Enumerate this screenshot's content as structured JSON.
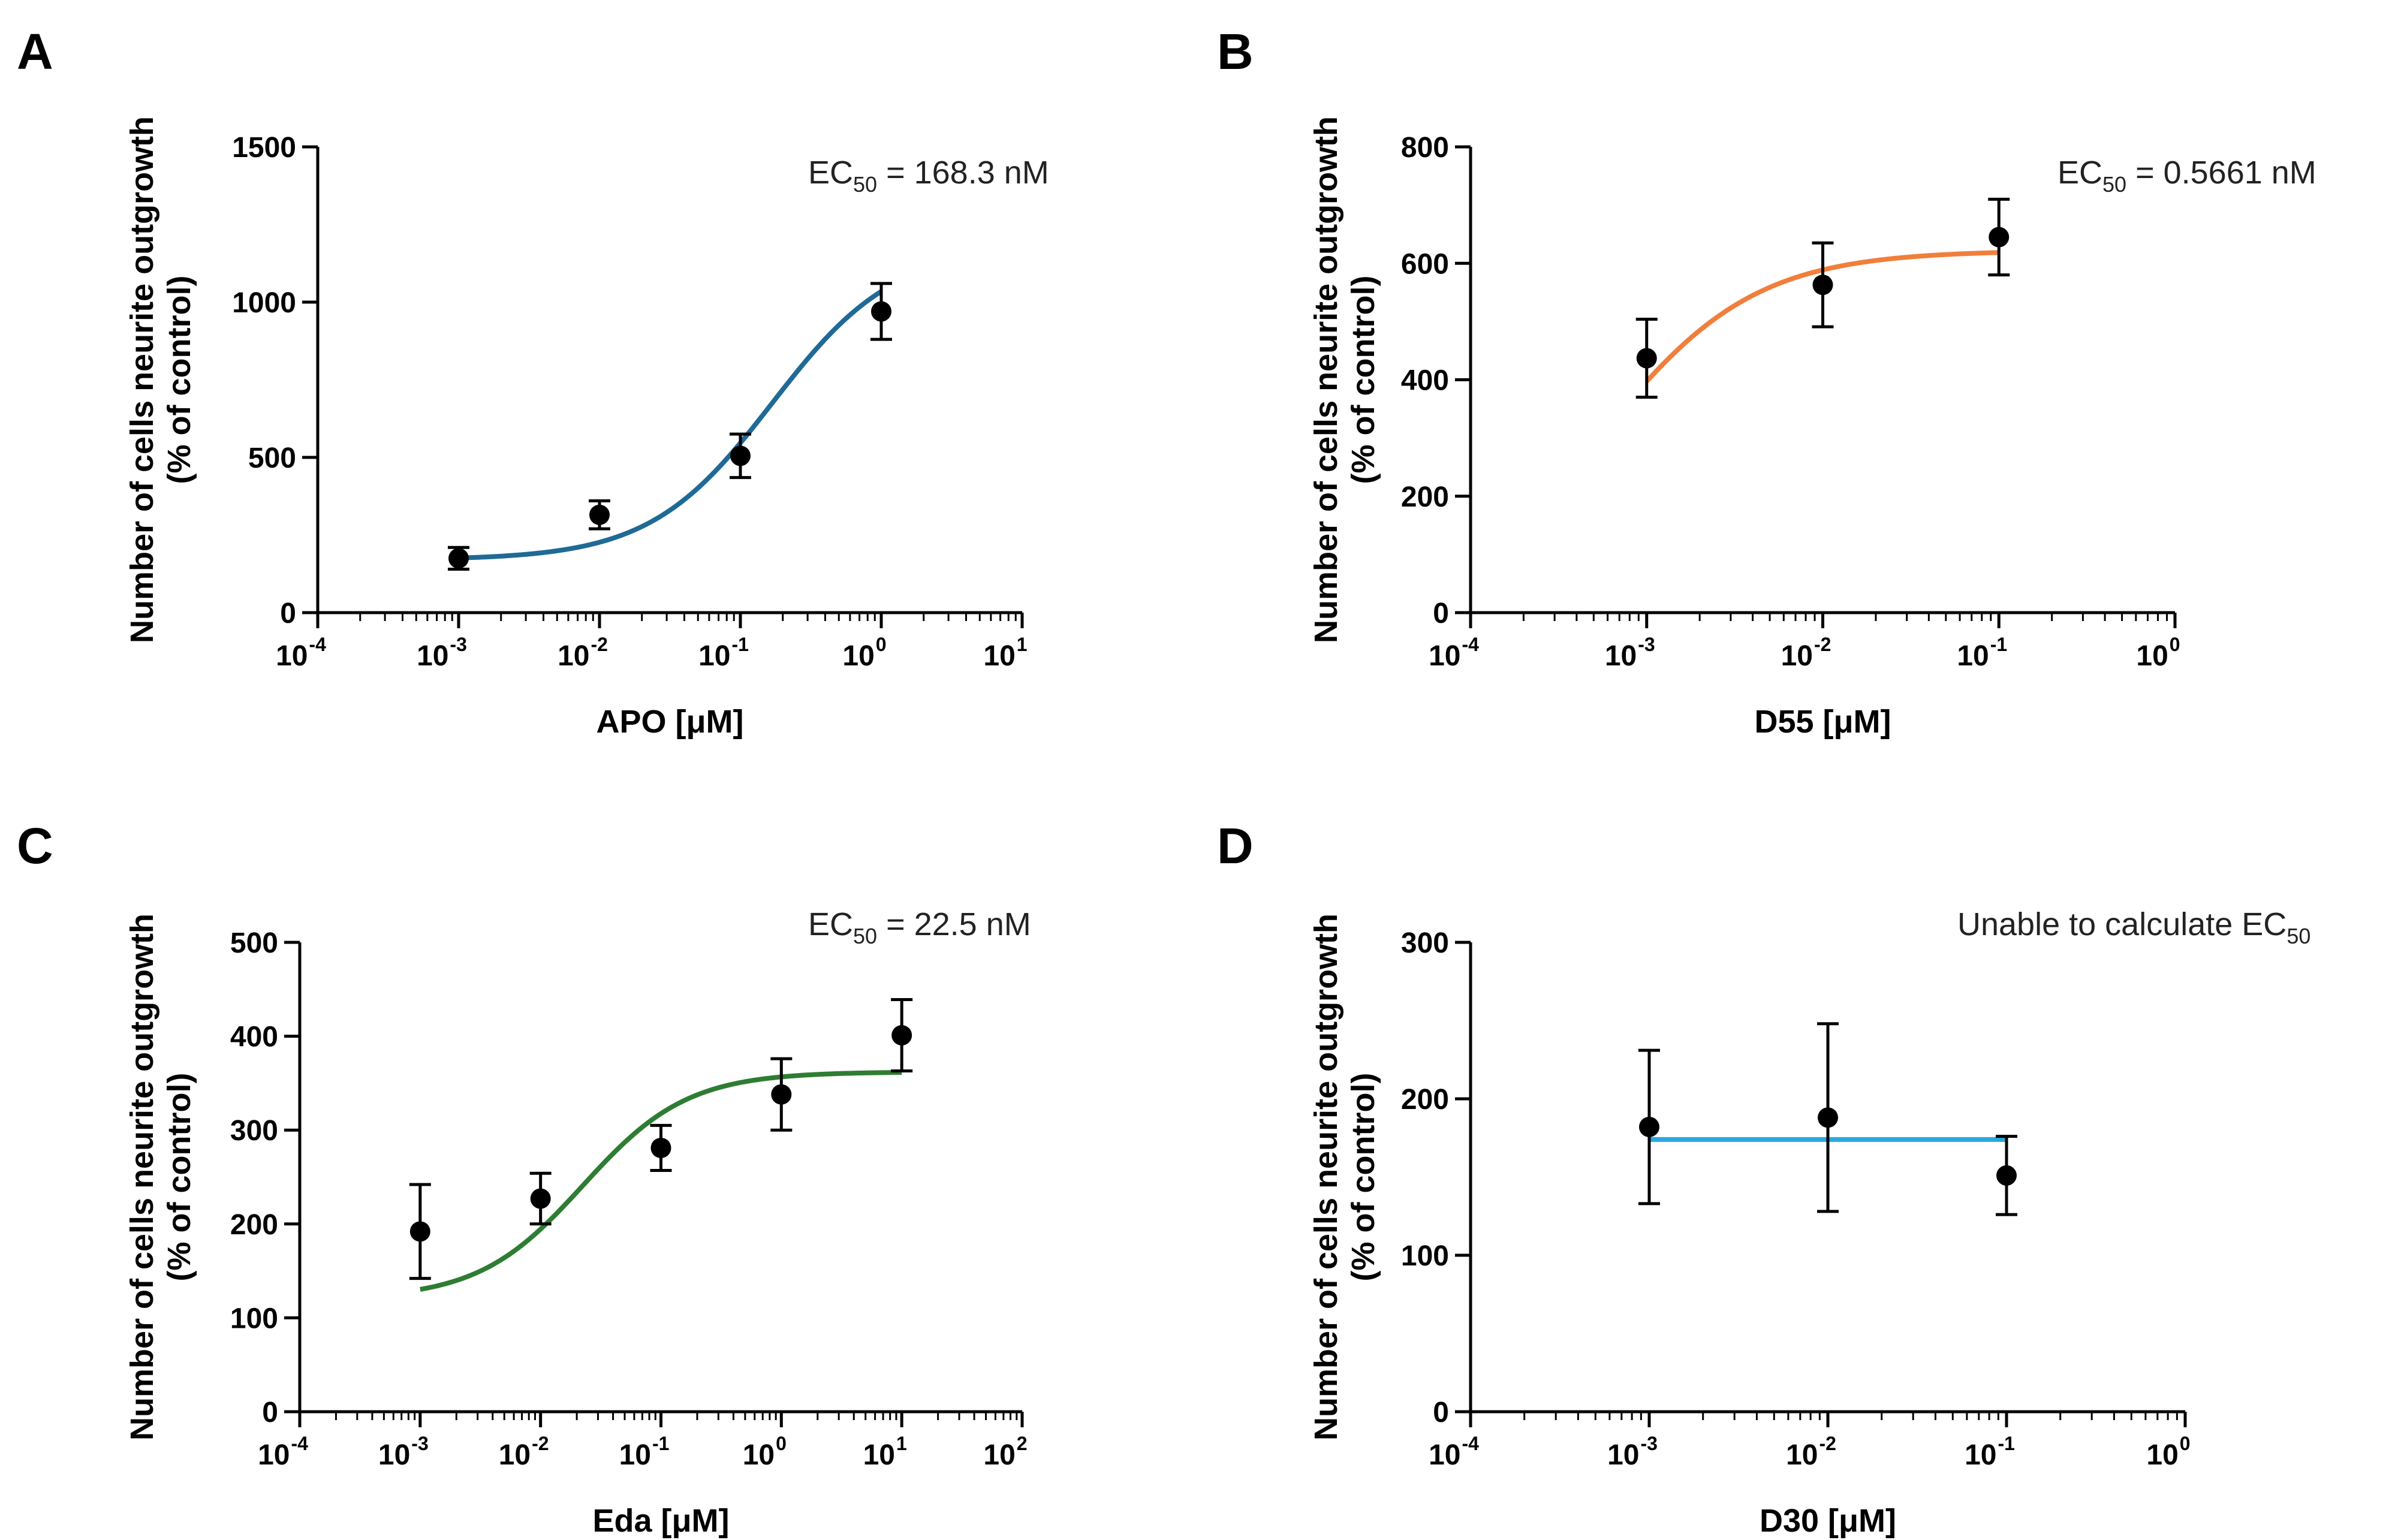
{
  "chart_data": [
    {
      "type": "scatter",
      "panel": "A",
      "title": "",
      "xlabel": "APO [μM]",
      "ylabel": "Number of cells neurite outgrowth",
      "ylabel2": "(% of control)",
      "x_scale": "log",
      "xlim_exp": [
        -4,
        1
      ],
      "ylim": [
        0,
        1500
      ],
      "y_ticks": [
        0,
        500,
        1000,
        1500
      ],
      "annotation_main": "EC",
      "annotation_sub": "50",
      "annotation_rest": " = 168.3 nM",
      "fit_color": "#1f6a96",
      "fit": {
        "type": "sigmoid",
        "bottom": 170,
        "top": 1180,
        "log_ec50": -0.774,
        "hill": 1.0,
        "x_from": 0.001,
        "x_to": 1
      },
      "points": [
        {
          "x": 0.001,
          "y": 175,
          "err": 35
        },
        {
          "x": 0.01,
          "y": 315,
          "err": 45
        },
        {
          "x": 0.1,
          "y": 505,
          "err": 70
        },
        {
          "x": 1,
          "y": 970,
          "err": 90
        }
      ]
    },
    {
      "type": "scatter",
      "panel": "B",
      "title": "",
      "xlabel": "D55 [μM]",
      "ylabel": "Number of cells neurite outgrowth",
      "ylabel2": "(% of control)",
      "x_scale": "log",
      "xlim_exp": [
        -4,
        0
      ],
      "ylim": [
        0,
        800
      ],
      "y_ticks": [
        0,
        200,
        400,
        600,
        800
      ],
      "annotation_main": "EC",
      "annotation_sub": "50",
      "annotation_rest": " = 0.5661 nM",
      "fit_color": "#f07f3c",
      "fit": {
        "type": "sigmoid",
        "bottom": 0,
        "top": 622,
        "log_ec50": -3.247,
        "hill": 1.0,
        "x_from": 0.001,
        "x_to": 0.1
      },
      "points": [
        {
          "x": 0.001,
          "y": 437,
          "err": 67
        },
        {
          "x": 0.01,
          "y": 563,
          "err": 72
        },
        {
          "x": 0.1,
          "y": 645,
          "err": 65
        }
      ]
    },
    {
      "type": "scatter",
      "panel": "C",
      "title": "",
      "xlabel": "Eda [μM]",
      "ylabel": "Number of cells neurite outgrowth",
      "ylabel2": "(% of control)",
      "x_scale": "log",
      "xlim_exp": [
        -4,
        2
      ],
      "ylim": [
        0,
        500
      ],
      "y_ticks": [
        0,
        100,
        200,
        300,
        400,
        500
      ],
      "annotation_main": "EC",
      "annotation_sub": "50",
      "annotation_rest": " = 22.5 nM",
      "fit_color": "#2e7d32",
      "fit": {
        "type": "sigmoid",
        "bottom": 120,
        "top": 362,
        "log_ec50": -1.648,
        "hill": 1.0,
        "x_from": 0.001,
        "x_to": 10
      },
      "points": [
        {
          "x": 0.001,
          "y": 192,
          "err": 50
        },
        {
          "x": 0.01,
          "y": 227,
          "err": 27
        },
        {
          "x": 0.1,
          "y": 281,
          "err": 24
        },
        {
          "x": 1,
          "y": 338,
          "err": 38
        },
        {
          "x": 10,
          "y": 401,
          "err": 38
        }
      ]
    },
    {
      "type": "scatter",
      "panel": "D",
      "title": "",
      "xlabel": "D30 [μM]",
      "ylabel": "Number of cells neurite outgrowth",
      "ylabel2": "(% of control)",
      "x_scale": "log",
      "xlim_exp": [
        -4,
        0
      ],
      "ylim": [
        0,
        300
      ],
      "y_ticks": [
        0,
        100,
        200,
        300
      ],
      "annotation_main": "Unable to calculate EC",
      "annotation_sub": "50",
      "annotation_rest": "",
      "fit_color": "#29a8e0",
      "fit": {
        "type": "flat",
        "value": 174,
        "x_from": 0.001,
        "x_to": 0.1
      },
      "points": [
        {
          "x": 0.001,
          "y": 182,
          "err": 49
        },
        {
          "x": 0.01,
          "y": 188,
          "err": 60
        },
        {
          "x": 0.1,
          "y": 151,
          "err": 25
        }
      ]
    }
  ]
}
